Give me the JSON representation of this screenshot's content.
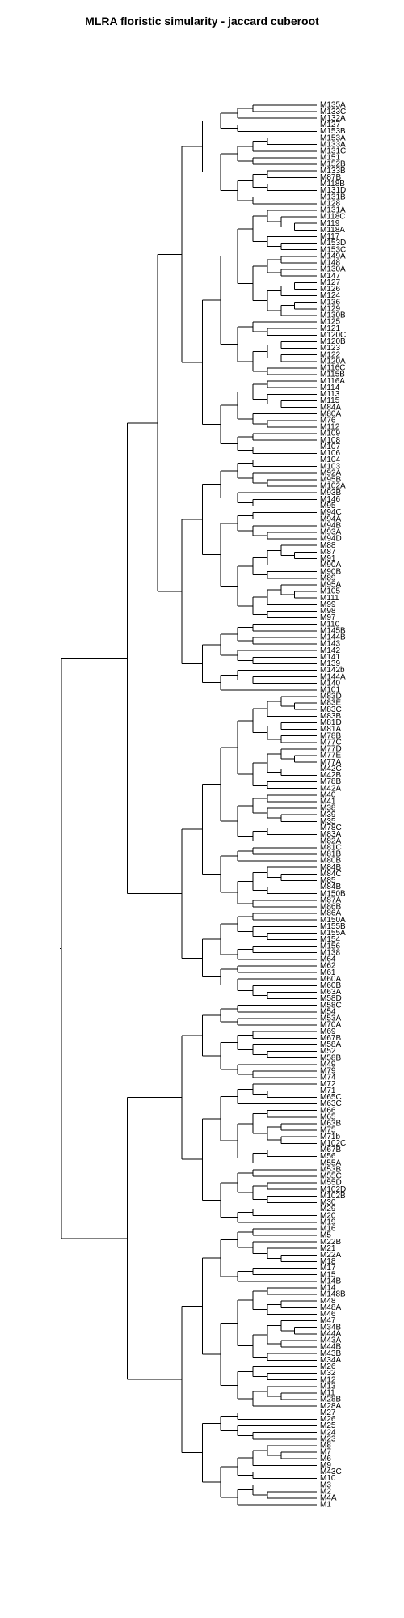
{
  "title": "MLRA floristic simularity - jaccard cuberoot",
  "tree": [
    [
      "((M135A,M133C),M132A)",
      [
        [
          [
            [
              [
                [
                  [
                    "M135A",
                    "M133C"
                  ],
                  "M132A"
                ],
                [
                  "M127",
                  [
                    "M153B",
                    "M153A"
                  ]
                ]
              ],
              [
                [
                  "M133A",
                  "M131C"
                ],
                [
                  "M151",
                  [
                    "M152B",
                    "M133B"
                  ]
                ]
              ]
            ],
            [
              [
                [
                  "M87B",
                  "M118B"
                ],
                [
                  [
                    "M131D",
                    "M131B"
                  ],
                  [
                    "M128",
                    [
                      "M131A",
                      "M118C"
                    ]
                  ]
                ]
              ],
              [
                "M119",
                [
                  "M118A",
                  [
                    "M117",
                    "M153D"
                  ]
                ]
              ]
            ]
          ],
          [
            [
              [
                [
                  "M153C",
                  "M149A"
                ],
                [
                  "M148",
                  [
                    "M130A",
                    "M147"
                  ]
                ]
              ],
              [
                [
                  "M127b",
                  "M126"
                ],
                [
                  "M124",
                  [
                    "M136",
                    [
                      "M129",
                      "M130B"
                    ]
                  ]
                ]
              ]
            ],
            [
              [
                [
                  [
                    "M125",
                    "M121"
                  ],
                  [
                    "M120C",
                    [
                      "M120B",
                      "M123"
                    ]
                  ]
                ],
                [
                  [
                    [
                      "M122",
                      "M120A"
                    ],
                    [
                      "M116C",
                      "M115B"
                    ]
                  ],
                  [
                    "M116A",
                    [
                      "M114",
                      "M113"
                    ]
                  ]
                ]
              ],
              [
                "M115",
                "M84A"
              ]
            ]
          ]
        ],
        [
          [
            [
              "M80A",
              "M76"
            ],
            [
              "M112",
              [
                "M109",
                "M108"
              ]
            ]
          ],
          [
            "M107",
            "M106"
          ]
        ]
      ]
    ]
  ],
  "labels": [
    "M135A",
    "M133C",
    "M132A",
    "M127",
    "M153B",
    "M153A",
    "M133A",
    "M131C",
    "M151",
    "M152B",
    "M133B",
    "M87B",
    "M118B",
    "M131D",
    "M131B",
    "M128",
    "M131A",
    "M118C",
    "M119",
    "M118A",
    "M117",
    "M153D",
    "M153C",
    "M149A",
    "M148",
    "M130A",
    "M147",
    "M127",
    "M126",
    "M124",
    "M136",
    "M129",
    "M130B",
    "M125",
    "M121",
    "M120C",
    "M120B",
    "M123",
    "M122",
    "M120A",
    "M116C",
    "M115B",
    "M116A",
    "M114",
    "M113",
    "M115",
    "M84A",
    "M80A",
    "M76",
    "M112",
    "M109",
    "M108",
    "M107",
    "M106",
    "M104",
    "M103",
    "M92A",
    "M95B",
    "M102A",
    "M93B",
    "M146",
    "M95",
    "M94C",
    "M94A",
    "M94B",
    "M93A",
    "M94D",
    "M88",
    "M87",
    "M91",
    "M90A",
    "M90B",
    "M89",
    "M95A",
    "M105",
    "M111",
    "M99",
    "M98",
    "M97",
    "M110",
    "M145B",
    "M144B",
    "M143",
    "M142",
    "M141",
    "M139",
    "M142b",
    "M144A",
    "M140",
    "M101",
    "M83D",
    "M83E",
    "M83C",
    "M83B",
    "M81D",
    "M81A",
    "M78B",
    "M77C",
    "M77D",
    "M77E",
    "M77A",
    "M42C",
    "M42B",
    "M78B",
    "M42A",
    "M40",
    "M41",
    "M38",
    "M39",
    "M35",
    "M78C",
    "M83A",
    "M82A",
    "M81C",
    "M81B",
    "M80B",
    "M84B",
    "M84C",
    "M85",
    "M84B",
    "M150B",
    "M87A",
    "M86B",
    "M86A",
    "M150A",
    "M155B",
    "M155A",
    "M154",
    "M156",
    "M138",
    "M64",
    "M62",
    "M61",
    "M60A",
    "M60B",
    "M63A",
    "M58D",
    "M58C",
    "M54",
    "M53A",
    "M70A",
    "M69",
    "M67B",
    "M58A",
    "M52",
    "M58B",
    "M49",
    "M79",
    "M74",
    "M72",
    "M71",
    "M65C",
    "M63C",
    "M66",
    "M65",
    "M63B",
    "M75",
    "M71b",
    "M102C",
    "M67B",
    "M56",
    "M55A",
    "M53B",
    "M55C",
    "M55D",
    "M102D",
    "M102B",
    "M30",
    "M29",
    "M20",
    "M19",
    "M16",
    "M5",
    "M22B",
    "M21",
    "M22A",
    "M18",
    "M17",
    "M15",
    "M14B",
    "M14",
    "M148B",
    "M48",
    "M48A",
    "M46",
    "M47",
    "M34B",
    "M44A",
    "M43A",
    "M44B",
    "M43B",
    "M34A",
    "M26",
    "M32",
    "M12",
    "M13",
    "M11",
    "M28B",
    "M28A",
    "M27",
    "M26",
    "M25",
    "M24",
    "M23",
    "M8",
    "M7",
    "M6",
    "M9",
    "M43C",
    "M10",
    "M3",
    "M2",
    "M4A",
    "M1"
  ]
}
